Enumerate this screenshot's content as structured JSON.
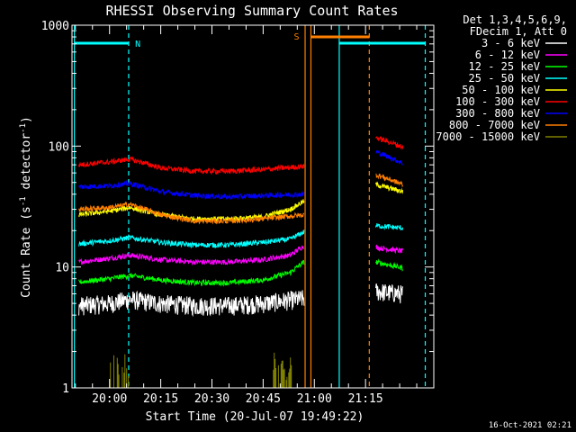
{
  "chart_data": {
    "type": "line",
    "title": "RHESSI Observing Summary Count Rates",
    "xlabel": "Start Time (20-Jul-07 19:49:22)",
    "ylabel_main": "Count Rate (s",
    "ylabel_sup1": "-1",
    "ylabel_mid": " detector",
    "ylabel_sup2": "-1",
    "ylabel_end": ")",
    "y_scale": "log",
    "ylim": [
      1,
      1000
    ],
    "x_range_minutes": [
      -11,
      95
    ],
    "x_ticks": [
      {
        "minute": 0,
        "label": "20:00"
      },
      {
        "minute": 15,
        "label": "20:15"
      },
      {
        "minute": 30,
        "label": "20:30"
      },
      {
        "minute": 45,
        "label": "20:45"
      },
      {
        "minute": 60,
        "label": "21:00"
      },
      {
        "minute": 75,
        "label": "21:15"
      }
    ],
    "y_ticks": [
      {
        "value": 1,
        "label": "1"
      },
      {
        "value": 10,
        "label": "10"
      },
      {
        "value": 100,
        "label": "100"
      },
      {
        "value": 1000,
        "label": "1000"
      }
    ],
    "legend_header": [
      "Det 1,3,4,5,6,9,",
      "FDecim 1, Att 0"
    ],
    "legend_position": "top-right",
    "series": [
      {
        "name": "3 - 6 keV",
        "color": "#ffffff",
        "segments": [
          {
            "x": [
              -9,
              0,
              6,
              15,
              25,
              35,
              45,
              57
            ],
            "y": [
              4.8,
              5.0,
              5.4,
              5.0,
              4.8,
              4.8,
              5.0,
              5.5
            ]
          },
          {
            "x": [
              78,
              86
            ],
            "y": [
              6.3,
              6.0
            ]
          }
        ]
      },
      {
        "name": "6 - 12 keV",
        "color": "#ff00ff",
        "segments": [
          {
            "x": [
              -9,
              0,
              6,
              15,
              25,
              35,
              45,
              53,
              57
            ],
            "y": [
              11.0,
              11.8,
              12.5,
              11.5,
              11.0,
              11.0,
              11.5,
              12.5,
              15.0
            ]
          },
          {
            "x": [
              78,
              86
            ],
            "y": [
              14.5,
              13.5
            ]
          }
        ]
      },
      {
        "name": "12 - 25 keV",
        "color": "#00ff00",
        "segments": [
          {
            "x": [
              -9,
              0,
              6,
              15,
              25,
              35,
              45,
              53,
              57
            ],
            "y": [
              7.5,
              8.0,
              8.5,
              7.8,
              7.4,
              7.4,
              7.8,
              9.0,
              11.0
            ]
          },
          {
            "x": [
              78,
              86
            ],
            "y": [
              11.0,
              9.8
            ]
          }
        ]
      },
      {
        "name": "25 - 50 keV",
        "color": "#00ffff",
        "segments": [
          {
            "x": [
              -9,
              0,
              6,
              15,
              25,
              35,
              45,
              53,
              57
            ],
            "y": [
              15.5,
              16.5,
              17.5,
              16.0,
              15.2,
              15.2,
              16.0,
              17.0,
              19.5
            ]
          },
          {
            "x": [
              78,
              86
            ],
            "y": [
              22.0,
              21.0
            ]
          }
        ]
      },
      {
        "name": "50 - 100 keV",
        "color": "#ffff00",
        "segments": [
          {
            "x": [
              -9,
              0,
              6,
              15,
              25,
              35,
              45,
              53,
              57
            ],
            "y": [
              27.0,
              29.0,
              31.0,
              27.0,
              25.0,
              25.0,
              26.0,
              30.0,
              35.0
            ]
          },
          {
            "x": [
              78,
              86
            ],
            "y": [
              48.0,
              42.0
            ]
          }
        ]
      },
      {
        "name": "100 - 300 keV",
        "color": "#ff0000",
        "segments": [
          {
            "x": [
              -9,
              0,
              6,
              15,
              25,
              35,
              45,
              57
            ],
            "y": [
              70.0,
              74.0,
              78.0,
              66.0,
              62.0,
              62.0,
              64.0,
              68.0
            ]
          },
          {
            "x": [
              78,
              86
            ],
            "y": [
              118.0,
              98.0
            ]
          }
        ]
      },
      {
        "name": "300 - 800 keV",
        "color": "#0000ff",
        "segments": [
          {
            "x": [
              -9,
              0,
              6,
              15,
              25,
              35,
              45,
              57
            ],
            "y": [
              46.0,
              47.0,
              49.0,
              42.0,
              39.0,
              38.0,
              39.0,
              40.0
            ]
          },
          {
            "x": [
              78,
              86
            ],
            "y": [
              90.0,
              72.0
            ]
          }
        ]
      },
      {
        "name": "800 - 7000 keV",
        "color": "#ff8000",
        "segments": [
          {
            "x": [
              -9,
              0,
              6,
              15,
              25,
              35,
              45,
              57
            ],
            "y": [
              30.0,
              31.0,
              33.0,
              27.0,
              24.0,
              24.0,
              25.0,
              27.0
            ]
          },
          {
            "x": [
              78,
              86
            ],
            "y": [
              58.0,
              48.0
            ]
          }
        ]
      },
      {
        "name": "7000 - 15000 keV",
        "color": "#808000",
        "segments": []
      }
    ],
    "annotations": [
      {
        "label": "N",
        "color": "#00ffff"
      },
      {
        "label": "S",
        "color": "#ff8000"
      }
    ],
    "timestamp": "16-Oct-2021 02:21"
  }
}
